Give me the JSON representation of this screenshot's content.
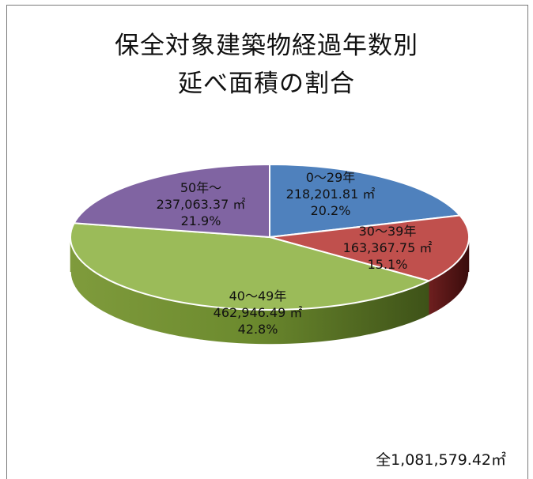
{
  "chart_data": {
    "type": "pie",
    "title_lines": [
      "保全対象建築物経過年数別",
      "延べ面積の割合"
    ],
    "slices": [
      {
        "label": "0～29年",
        "value": 218201.81,
        "value_text": "218,201.81 ㎡",
        "percent": 20.2,
        "percent_text": "20.2%",
        "color": "#4f81bd",
        "side_color": "#2c4d75"
      },
      {
        "label": "30～39年",
        "value": 163367.75,
        "value_text": "163,367.75 ㎡",
        "percent": 15.1,
        "percent_text": "15.1%",
        "color": "#c0504d",
        "side_color": "#5e1a1a"
      },
      {
        "label": "40～49年",
        "value": 462946.49,
        "value_text": "462,946.49 ㎡",
        "percent": 42.8,
        "percent_text": "42.8%",
        "color": "#9bbb59",
        "side_color": "#5f7a2c"
      },
      {
        "label": "50年～",
        "value": 237063.37,
        "value_text": "237,063.37 ㎡",
        "percent": 21.9,
        "percent_text": "21.9%",
        "color": "#8064a2",
        "side_color": "#4a3566"
      }
    ],
    "total_text": "全1,081,579.42㎡"
  }
}
